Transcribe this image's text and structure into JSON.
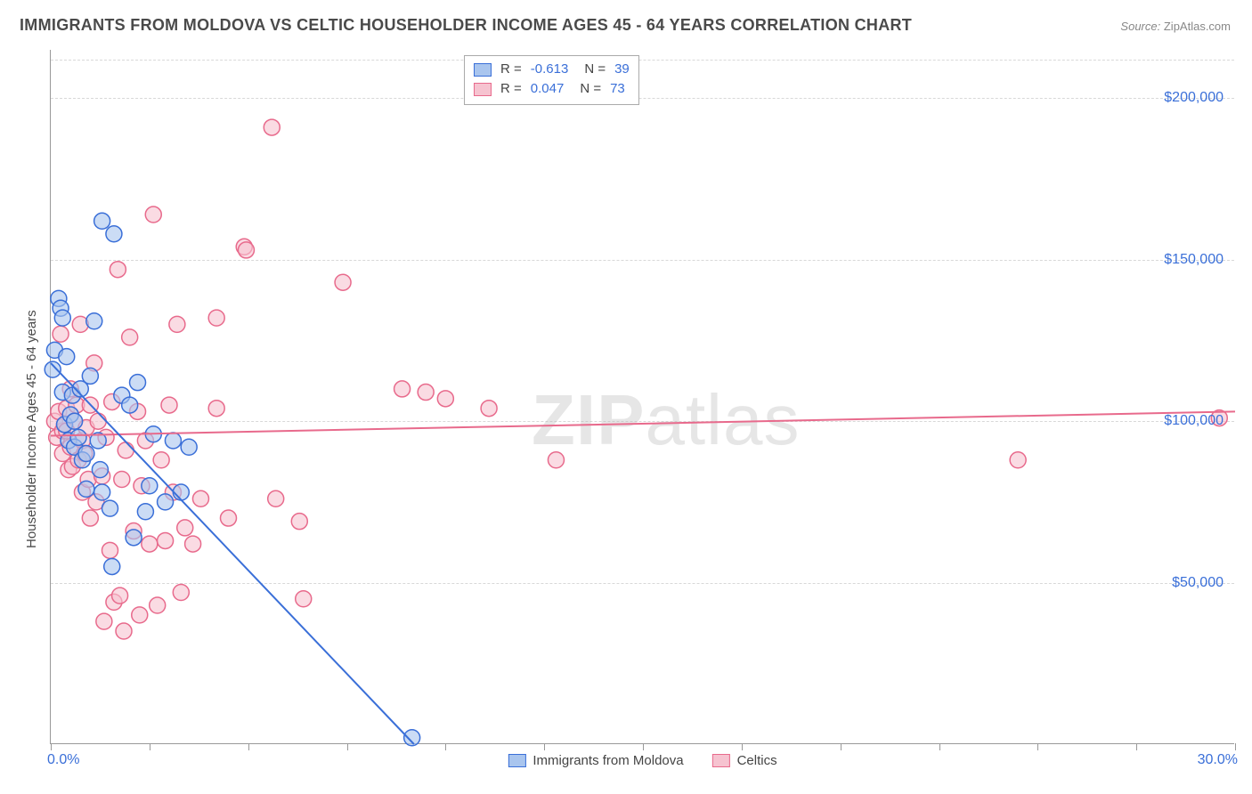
{
  "title": "IMMIGRANTS FROM MOLDOVA VS CELTIC HOUSEHOLDER INCOME AGES 45 - 64 YEARS CORRELATION CHART",
  "source_label": "Source:",
  "source_value": "ZipAtlas.com",
  "watermark": {
    "zip": "ZIP",
    "atlas": "atlas"
  },
  "chart": {
    "type": "scatter",
    "xlim": [
      0,
      30
    ],
    "ylim": [
      0,
      215000
    ],
    "x_unit": "%",
    "y_unit": "$",
    "x_ticks": [
      0,
      2.5,
      5,
      7.5,
      10,
      12.5,
      15,
      17.5,
      20,
      22.5,
      25,
      27.5,
      30
    ],
    "x_tick_labels_shown": {
      "0": "0.0%",
      "30": "30.0%"
    },
    "y_gridlines": [
      50000,
      100000,
      150000,
      200000,
      212000
    ],
    "y_tick_labels": {
      "50000": "$50,000",
      "100000": "$100,000",
      "150000": "$150,000",
      "200000": "$200,000"
    },
    "ylabel": "Householder Income Ages 45 - 64 years",
    "background_color": "#ffffff",
    "grid_color": "#d8d8d8",
    "axis_color": "#999999",
    "label_color": "#3a6fd8",
    "title_color": "#4a4a4a",
    "title_fontsize": 18,
    "label_fontsize": 15,
    "tick_fontsize": 16,
    "marker_radius": 9,
    "marker_stroke_width": 1.5,
    "marker_fill_opacity": 0.25,
    "trend_line_width": 2
  },
  "series": [
    {
      "key": "moldova",
      "label": "Immigrants from Moldova",
      "color_stroke": "#3a6fd8",
      "color_fill": "#a9c5ee",
      "R": "-0.613",
      "N": "39",
      "trend": {
        "x1": 0,
        "y1": 118000,
        "x2": 9.2,
        "y2": 0
      },
      "points": [
        [
          0.05,
          116000
        ],
        [
          0.1,
          122000
        ],
        [
          0.2,
          138000
        ],
        [
          0.25,
          135000
        ],
        [
          0.3,
          132000
        ],
        [
          0.3,
          109000
        ],
        [
          0.35,
          99000
        ],
        [
          0.4,
          120000
        ],
        [
          0.45,
          94000
        ],
        [
          0.5,
          102000
        ],
        [
          0.55,
          108000
        ],
        [
          0.6,
          100000
        ],
        [
          0.6,
          92000
        ],
        [
          0.7,
          95000
        ],
        [
          0.75,
          110000
        ],
        [
          0.8,
          88000
        ],
        [
          0.9,
          90000
        ],
        [
          0.9,
          79000
        ],
        [
          1.0,
          114000
        ],
        [
          1.1,
          131000
        ],
        [
          1.2,
          94000
        ],
        [
          1.25,
          85000
        ],
        [
          1.3,
          78000
        ],
        [
          1.3,
          162000
        ],
        [
          1.5,
          73000
        ],
        [
          1.55,
          55000
        ],
        [
          1.6,
          158000
        ],
        [
          1.8,
          108000
        ],
        [
          2.0,
          105000
        ],
        [
          2.1,
          64000
        ],
        [
          2.2,
          112000
        ],
        [
          2.4,
          72000
        ],
        [
          2.5,
          80000
        ],
        [
          2.6,
          96000
        ],
        [
          2.9,
          75000
        ],
        [
          3.1,
          94000
        ],
        [
          3.3,
          78000
        ],
        [
          3.5,
          92000
        ],
        [
          9.15,
          2000
        ]
      ]
    },
    {
      "key": "celtics",
      "label": "Celtics",
      "color_stroke": "#e86a8c",
      "color_fill": "#f6c3d0",
      "R": "0.047",
      "N": "73",
      "trend": {
        "x1": 0,
        "y1": 95500,
        "x2": 30,
        "y2": 103000
      },
      "points": [
        [
          0.1,
          100000
        ],
        [
          0.15,
          95000
        ],
        [
          0.2,
          103000
        ],
        [
          0.25,
          127000
        ],
        [
          0.3,
          97000
        ],
        [
          0.3,
          90000
        ],
        [
          0.35,
          99000
        ],
        [
          0.4,
          104000
        ],
        [
          0.45,
          85000
        ],
        [
          0.5,
          110000
        ],
        [
          0.5,
          92000
        ],
        [
          0.55,
          86000
        ],
        [
          0.6,
          100000
        ],
        [
          0.65,
          105000
        ],
        [
          0.7,
          88000
        ],
        [
          0.75,
          130000
        ],
        [
          0.8,
          94000
        ],
        [
          0.8,
          78000
        ],
        [
          0.85,
          90000
        ],
        [
          0.9,
          98000
        ],
        [
          0.95,
          82000
        ],
        [
          1.0,
          105000
        ],
        [
          1.0,
          70000
        ],
        [
          1.1,
          118000
        ],
        [
          1.15,
          75000
        ],
        [
          1.2,
          100000
        ],
        [
          1.3,
          83000
        ],
        [
          1.35,
          38000
        ],
        [
          1.4,
          95000
        ],
        [
          1.5,
          60000
        ],
        [
          1.55,
          106000
        ],
        [
          1.6,
          44000
        ],
        [
          1.7,
          147000
        ],
        [
          1.75,
          46000
        ],
        [
          1.8,
          82000
        ],
        [
          1.85,
          35000
        ],
        [
          1.9,
          91000
        ],
        [
          2.0,
          126000
        ],
        [
          2.1,
          66000
        ],
        [
          2.2,
          103000
        ],
        [
          2.25,
          40000
        ],
        [
          2.3,
          80000
        ],
        [
          2.4,
          94000
        ],
        [
          2.5,
          62000
        ],
        [
          2.6,
          164000
        ],
        [
          2.7,
          43000
        ],
        [
          2.8,
          88000
        ],
        [
          2.9,
          63000
        ],
        [
          3.0,
          105000
        ],
        [
          3.1,
          78000
        ],
        [
          3.2,
          130000
        ],
        [
          3.3,
          47000
        ],
        [
          3.4,
          67000
        ],
        [
          3.6,
          62000
        ],
        [
          3.8,
          76000
        ],
        [
          4.2,
          104000
        ],
        [
          4.2,
          132000
        ],
        [
          4.5,
          70000
        ],
        [
          4.9,
          154000
        ],
        [
          4.95,
          153000
        ],
        [
          5.6,
          191000
        ],
        [
          5.7,
          76000
        ],
        [
          6.3,
          69000
        ],
        [
          6.4,
          45000
        ],
        [
          7.4,
          143000
        ],
        [
          8.9,
          110000
        ],
        [
          9.5,
          109000
        ],
        [
          10.0,
          107000
        ],
        [
          11.1,
          104000
        ],
        [
          12.8,
          88000
        ],
        [
          24.5,
          88000
        ],
        [
          29.6,
          101000
        ],
        [
          0.4,
          97000
        ]
      ]
    }
  ],
  "legend_box": {
    "R_label": "R =",
    "N_label": "N ="
  },
  "footer_legend_label_1": "Immigrants from Moldova",
  "footer_legend_label_2": "Celtics"
}
